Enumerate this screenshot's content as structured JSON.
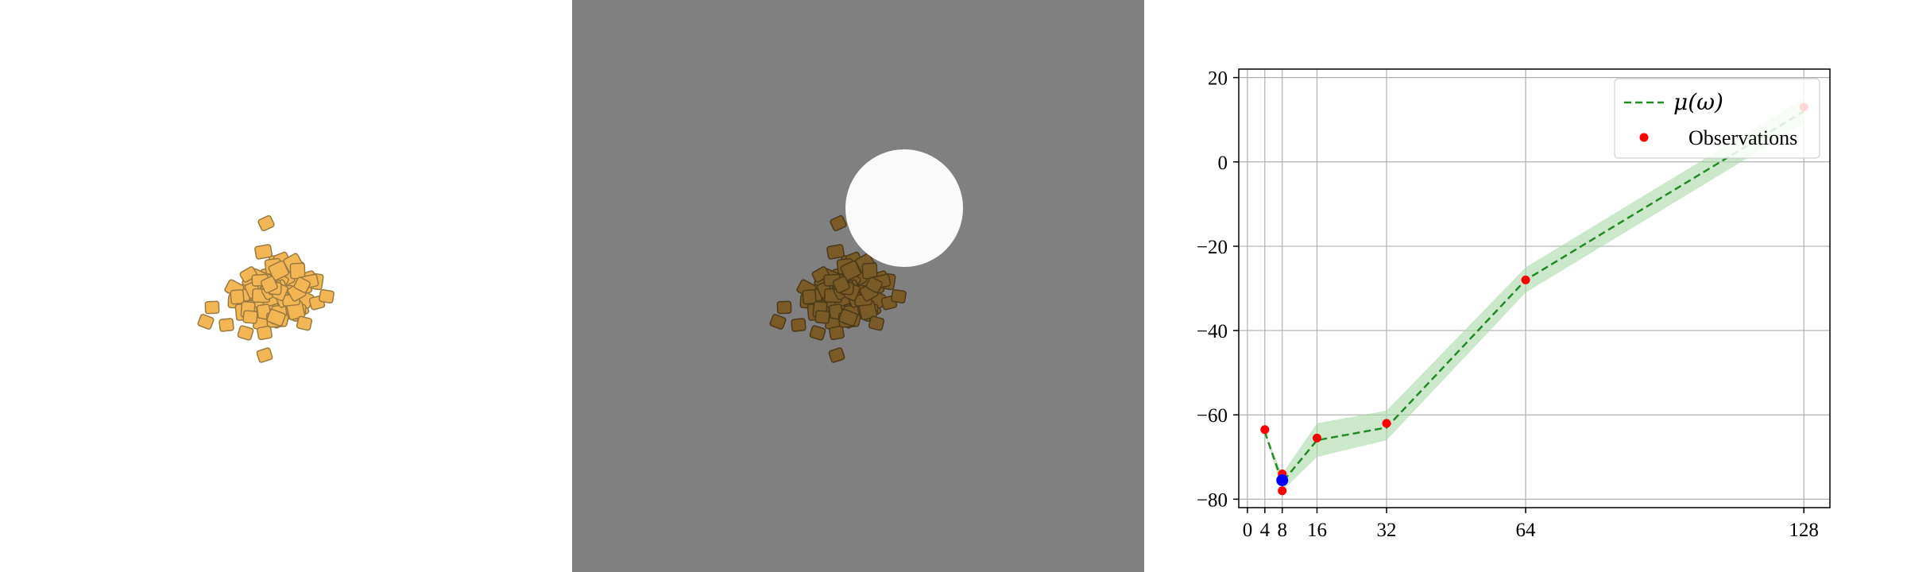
{
  "scene": {
    "left_panel": "rendered granular pile",
    "middle_panel": "rendered granular pile with white circular target region on gray background",
    "colors": {
      "left_bg": "#ffffff",
      "mid_bg": "#808080",
      "block_light": "#f2b654",
      "block_dark": "#7a5a26",
      "target_circle": "#ffffff"
    }
  },
  "chart_data": {
    "type": "line",
    "x": [
      4,
      8,
      16,
      32,
      64,
      128
    ],
    "series": [
      {
        "name": "μ(ω)",
        "style": "dashed",
        "color": "#228b22",
        "x": [
          4,
          8,
          16,
          32,
          64,
          128
        ],
        "values": [
          -64,
          -76,
          -66,
          -63,
          -28,
          12
        ],
        "band_lower": [
          -64,
          -78,
          -70,
          -66,
          -31,
          9
        ],
        "band_upper": [
          -64,
          -74,
          -62,
          -59,
          -25,
          15
        ],
        "band_color": "#a8d8a8"
      },
      {
        "name": "Observations",
        "style": "points",
        "color": "#ff0000",
        "x": [
          4,
          8,
          8,
          16,
          32,
          64,
          128
        ],
        "values": [
          -63.5,
          -74,
          -78,
          -65.5,
          -62,
          -28,
          13
        ]
      },
      {
        "name": "",
        "style": "points",
        "color": "#0000ff",
        "x": [
          8
        ],
        "values": [
          -75.5
        ]
      }
    ],
    "xticks": [
      "0",
      "4",
      "8",
      "16",
      "32",
      "64",
      "128"
    ],
    "xtick_values": [
      0,
      4,
      8,
      16,
      32,
      64,
      128
    ],
    "yticks": [
      "20",
      "0",
      "−20",
      "−40",
      "−60",
      "−80"
    ],
    "ytick_values": [
      20,
      0,
      -20,
      -40,
      -60,
      -80
    ],
    "xlim": [
      -2,
      134
    ],
    "ylim": [
      -82,
      22
    ],
    "grid": true,
    "legend_placement": "top-right",
    "legend": [
      {
        "label_prefix": "μ(ω)",
        "kind": "dashed-line"
      },
      {
        "label": "Observations",
        "kind": "marker"
      }
    ],
    "title": "",
    "xlabel": "",
    "ylabel": ""
  }
}
